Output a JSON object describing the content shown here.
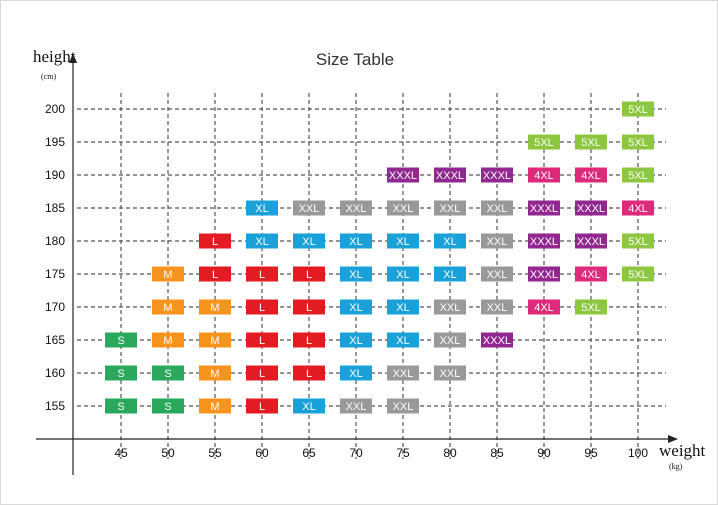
{
  "chart_data": {
    "type": "table",
    "title": "Size Table",
    "xlabel": "weight",
    "xunit": "(kg)",
    "ylabel": "height",
    "yunit": "(cm)",
    "x": [
      45,
      50,
      55,
      60,
      65,
      70,
      75,
      80,
      85,
      90,
      95,
      100
    ],
    "y": [
      155,
      160,
      165,
      170,
      175,
      180,
      185,
      190,
      195,
      200
    ],
    "grid": true,
    "sizes": {
      "S": "#2aa85c",
      "M": "#f7941d",
      "L": "#e31b23",
      "XL": "#1ba1d9",
      "XXL": "#999999",
      "XXXL": "#92278f",
      "4XL": "#de2a7b",
      "5XL": "#8dc63f"
    },
    "cells": [
      {
        "x": 100,
        "y": 200,
        "size": "5XL"
      },
      {
        "x": 90,
        "y": 195,
        "size": "5XL"
      },
      {
        "x": 95,
        "y": 195,
        "size": "5XL"
      },
      {
        "x": 100,
        "y": 195,
        "size": "5XL"
      },
      {
        "x": 75,
        "y": 190,
        "size": "XXXL"
      },
      {
        "x": 80,
        "y": 190,
        "size": "XXXL"
      },
      {
        "x": 85,
        "y": 190,
        "size": "XXXL"
      },
      {
        "x": 90,
        "y": 190,
        "size": "4XL"
      },
      {
        "x": 95,
        "y": 190,
        "size": "4XL"
      },
      {
        "x": 100,
        "y": 190,
        "size": "5XL"
      },
      {
        "x": 60,
        "y": 185,
        "size": "XL"
      },
      {
        "x": 65,
        "y": 185,
        "size": "XXL"
      },
      {
        "x": 70,
        "y": 185,
        "size": "XXL"
      },
      {
        "x": 75,
        "y": 185,
        "size": "XXL"
      },
      {
        "x": 80,
        "y": 185,
        "size": "XXL"
      },
      {
        "x": 85,
        "y": 185,
        "size": "XXL"
      },
      {
        "x": 90,
        "y": 185,
        "size": "XXXL"
      },
      {
        "x": 95,
        "y": 185,
        "size": "XXXL"
      },
      {
        "x": 100,
        "y": 185,
        "size": "4XL"
      },
      {
        "x": 55,
        "y": 180,
        "size": "L"
      },
      {
        "x": 60,
        "y": 180,
        "size": "XL"
      },
      {
        "x": 65,
        "y": 180,
        "size": "XL"
      },
      {
        "x": 70,
        "y": 180,
        "size": "XL"
      },
      {
        "x": 75,
        "y": 180,
        "size": "XL"
      },
      {
        "x": 80,
        "y": 180,
        "size": "XL"
      },
      {
        "x": 85,
        "y": 180,
        "size": "XXL"
      },
      {
        "x": 90,
        "y": 180,
        "size": "XXXL"
      },
      {
        "x": 95,
        "y": 180,
        "size": "XXXL"
      },
      {
        "x": 100,
        "y": 180,
        "size": "5XL"
      },
      {
        "x": 50,
        "y": 175,
        "size": "M"
      },
      {
        "x": 55,
        "y": 175,
        "size": "L"
      },
      {
        "x": 60,
        "y": 175,
        "size": "L"
      },
      {
        "x": 65,
        "y": 175,
        "size": "L"
      },
      {
        "x": 70,
        "y": 175,
        "size": "XL"
      },
      {
        "x": 75,
        "y": 175,
        "size": "XL"
      },
      {
        "x": 80,
        "y": 175,
        "size": "XL"
      },
      {
        "x": 85,
        "y": 175,
        "size": "XXL"
      },
      {
        "x": 90,
        "y": 175,
        "size": "XXXL"
      },
      {
        "x": 95,
        "y": 175,
        "size": "4XL"
      },
      {
        "x": 100,
        "y": 175,
        "size": "5XL"
      },
      {
        "x": 50,
        "y": 170,
        "size": "M"
      },
      {
        "x": 55,
        "y": 170,
        "size": "M"
      },
      {
        "x": 60,
        "y": 170,
        "size": "L"
      },
      {
        "x": 65,
        "y": 170,
        "size": "L"
      },
      {
        "x": 70,
        "y": 170,
        "size": "XL"
      },
      {
        "x": 75,
        "y": 170,
        "size": "XL"
      },
      {
        "x": 80,
        "y": 170,
        "size": "XXL"
      },
      {
        "x": 85,
        "y": 170,
        "size": "XXL"
      },
      {
        "x": 90,
        "y": 170,
        "size": "4XL"
      },
      {
        "x": 95,
        "y": 170,
        "size": "5XL"
      },
      {
        "x": 45,
        "y": 165,
        "size": "S"
      },
      {
        "x": 50,
        "y": 165,
        "size": "M"
      },
      {
        "x": 55,
        "y": 165,
        "size": "M"
      },
      {
        "x": 60,
        "y": 165,
        "size": "L"
      },
      {
        "x": 65,
        "y": 165,
        "size": "L"
      },
      {
        "x": 70,
        "y": 165,
        "size": "XL"
      },
      {
        "x": 75,
        "y": 165,
        "size": "XL"
      },
      {
        "x": 80,
        "y": 165,
        "size": "XXL"
      },
      {
        "x": 85,
        "y": 165,
        "size": "XXXL"
      },
      {
        "x": 45,
        "y": 160,
        "size": "S"
      },
      {
        "x": 50,
        "y": 160,
        "size": "S"
      },
      {
        "x": 55,
        "y": 160,
        "size": "M"
      },
      {
        "x": 60,
        "y": 160,
        "size": "L"
      },
      {
        "x": 65,
        "y": 160,
        "size": "L"
      },
      {
        "x": 70,
        "y": 160,
        "size": "XL"
      },
      {
        "x": 75,
        "y": 160,
        "size": "XXL"
      },
      {
        "x": 80,
        "y": 160,
        "size": "XXL"
      },
      {
        "x": 45,
        "y": 155,
        "size": "S"
      },
      {
        "x": 50,
        "y": 155,
        "size": "S"
      },
      {
        "x": 55,
        "y": 155,
        "size": "M"
      },
      {
        "x": 60,
        "y": 155,
        "size": "L"
      },
      {
        "x": 65,
        "y": 155,
        "size": "XL"
      },
      {
        "x": 70,
        "y": 155,
        "size": "XXL"
      },
      {
        "x": 75,
        "y": 155,
        "size": "XXL"
      }
    ]
  }
}
